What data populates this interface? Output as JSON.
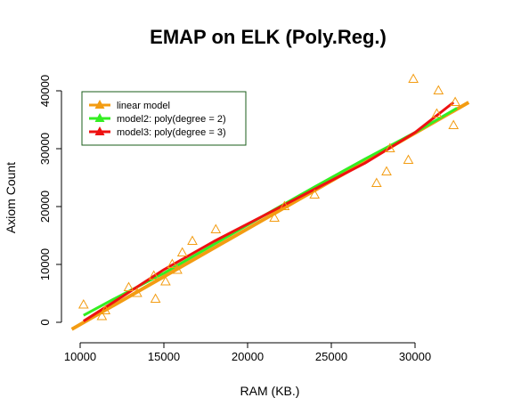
{
  "chart_data": {
    "type": "scatter",
    "title": "EMAP on ELK (Poly.Reg.)",
    "xlabel": "RAM (KB.)",
    "ylabel": "Axiom Count",
    "xlim": [
      9000,
      33500
    ],
    "ylim": [
      0,
      42000
    ],
    "xticks": [
      10000,
      15000,
      20000,
      25000,
      30000
    ],
    "xtick_labels": [
      "10000",
      "15000",
      "20000",
      "25000",
      "30000"
    ],
    "yticks": [
      0,
      10000,
      20000,
      30000,
      40000
    ],
    "ytick_labels": [
      "0",
      "10000",
      "20000",
      "30000",
      "40000"
    ],
    "points": {
      "name": "observations",
      "marker": "open-triangle",
      "color": "#f39c12",
      "x": [
        10200,
        11300,
        11500,
        12900,
        13400,
        14400,
        14500,
        15100,
        15500,
        15800,
        16100,
        16700,
        18100,
        21600,
        22200,
        24000,
        27700,
        28300,
        28500,
        29600,
        29900,
        31300,
        31400,
        32300,
        32400
      ],
      "y": [
        3000,
        1000,
        2000,
        6000,
        5000,
        8000,
        4000,
        7000,
        10000,
        9000,
        12000,
        14000,
        16000,
        18000,
        20000,
        22000,
        24000,
        26000,
        30000,
        28000,
        42000,
        36000,
        40000,
        34000,
        38000
      ]
    },
    "series": [
      {
        "name": "linear model",
        "color": "#f39c12",
        "x": [
          9500,
          33200
        ],
        "y": [
          -1200,
          38000
        ]
      },
      {
        "name": "model2: poly(degree = 2)",
        "color": "#33ee22",
        "x": [
          10200,
          12000,
          15000,
          18000,
          21000,
          24000,
          27000,
          30000,
          32500
        ],
        "y": [
          1200,
          4000,
          8500,
          13500,
          18500,
          23400,
          28200,
          32800,
          37000
        ]
      },
      {
        "name": "model3: poly(degree = 3)",
        "color": "#ee1111",
        "x": [
          10200,
          12000,
          15000,
          18000,
          21000,
          24000,
          27000,
          30000,
          32300
        ],
        "y": [
          200,
          3500,
          9100,
          14000,
          18500,
          23000,
          27500,
          32800,
          38000
        ]
      }
    ],
    "legend_position": "top-left"
  }
}
